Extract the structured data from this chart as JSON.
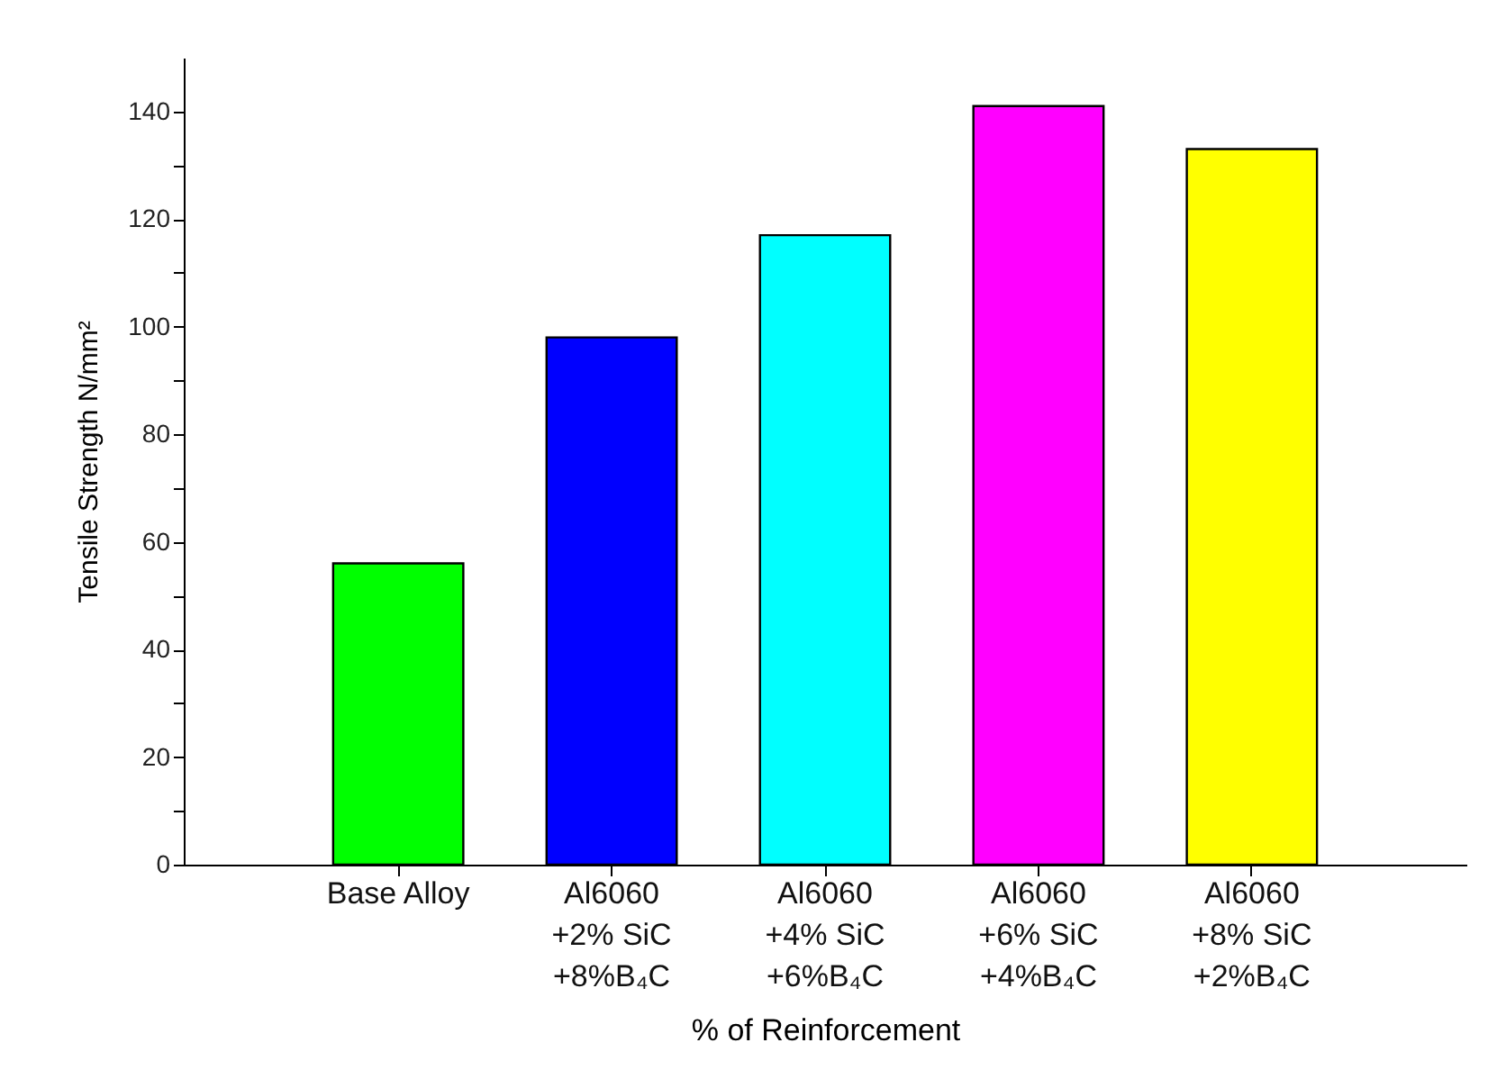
{
  "chart_data": {
    "type": "bar",
    "xlabel": "% of Reinforcement",
    "ylabel": "Tensile Strength N/mm²",
    "categories": [
      "Base Alloy",
      "Al6060\n+2% SiC\n+8%B₄C",
      "Al6060\n+4% SiC\n+6%B₄C",
      "Al6060\n+6% SiC\n+4%B₄C",
      "Al6060\n+8% SiC\n+2%B₄C"
    ],
    "values": [
      56,
      98,
      117,
      141,
      133
    ],
    "colors": [
      "#00ff00",
      "#0000ff",
      "#00ffff",
      "#ff00ff",
      "#ffff00"
    ],
    "ylim": [
      0,
      150
    ],
    "yticks": [
      0,
      {
        "value": 10,
        "label": null
      },
      20,
      {
        "value": 30,
        "label": null
      },
      40,
      {
        "value": 50,
        "label": null
      },
      60,
      {
        "value": 70,
        "label": null
      },
      80,
      {
        "value": 90,
        "label": null
      },
      100,
      {
        "value": 110,
        "label": null
      },
      120,
      {
        "value": 130,
        "label": null
      },
      140
    ],
    "grid": false,
    "legend": false
  }
}
